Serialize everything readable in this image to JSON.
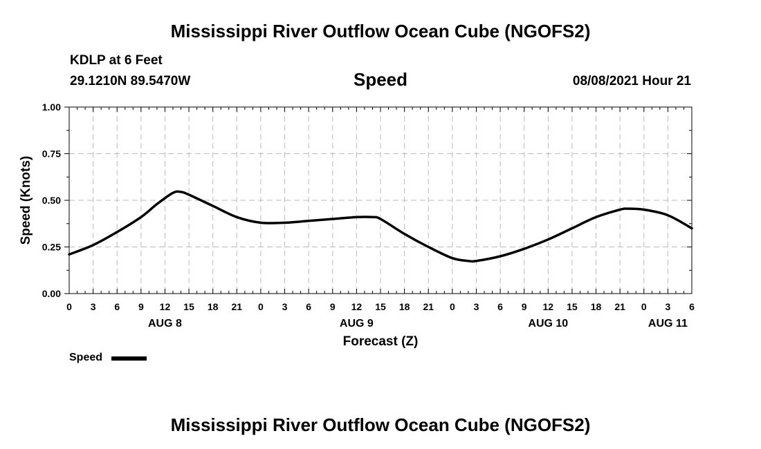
{
  "header": {
    "title_top": "Mississippi River Outflow Ocean Cube (NGOFS2)",
    "station": "KDLP at 6 Feet",
    "coordinates": "29.1210N  89.5470W",
    "variable": "Speed",
    "datetime": "08/08/2021 Hour 21",
    "title_bottom": "Mississippi River Outflow Ocean Cube (NGOFS2)"
  },
  "legend": {
    "label": "Speed"
  },
  "chart_data": {
    "type": "line",
    "title": "Speed",
    "xlabel": "Forecast (Z)",
    "ylabel": "Speed (Knots)",
    "xlim": [
      0,
      78
    ],
    "ylim": [
      0,
      1.0
    ],
    "grid": true,
    "y_ticks": [
      "0.00",
      "0.25",
      "0.50",
      "0.75",
      "1.00"
    ],
    "x_tick_labels": [
      "0",
      "3",
      "6",
      "9",
      "12",
      "15",
      "18",
      "21",
      "0",
      "3",
      "6",
      "9",
      "12",
      "15",
      "18",
      "21",
      "0",
      "3",
      "6",
      "9",
      "12",
      "15",
      "18",
      "21",
      "0",
      "3",
      "6"
    ],
    "day_labels": [
      {
        "label": "AUG 8",
        "hour": 12
      },
      {
        "label": "AUG 9",
        "hour": 36
      },
      {
        "label": "AUG 10",
        "hour": 60
      },
      {
        "label": "AUG 11",
        "hour": 75
      }
    ],
    "series": [
      {
        "name": "Speed",
        "x": [
          0,
          3,
          6,
          9,
          11,
          13,
          14,
          15,
          18,
          21,
          24,
          27,
          30,
          33,
          36,
          38,
          39,
          42,
          45,
          48,
          50,
          51,
          54,
          57,
          60,
          63,
          66,
          69,
          70,
          72,
          75,
          78
        ],
        "values": [
          0.21,
          0.26,
          0.33,
          0.41,
          0.48,
          0.54,
          0.545,
          0.53,
          0.47,
          0.41,
          0.38,
          0.38,
          0.39,
          0.4,
          0.41,
          0.41,
          0.4,
          0.32,
          0.25,
          0.19,
          0.175,
          0.175,
          0.2,
          0.24,
          0.29,
          0.35,
          0.41,
          0.45,
          0.455,
          0.45,
          0.42,
          0.35
        ],
        "color": "#000000"
      }
    ]
  }
}
